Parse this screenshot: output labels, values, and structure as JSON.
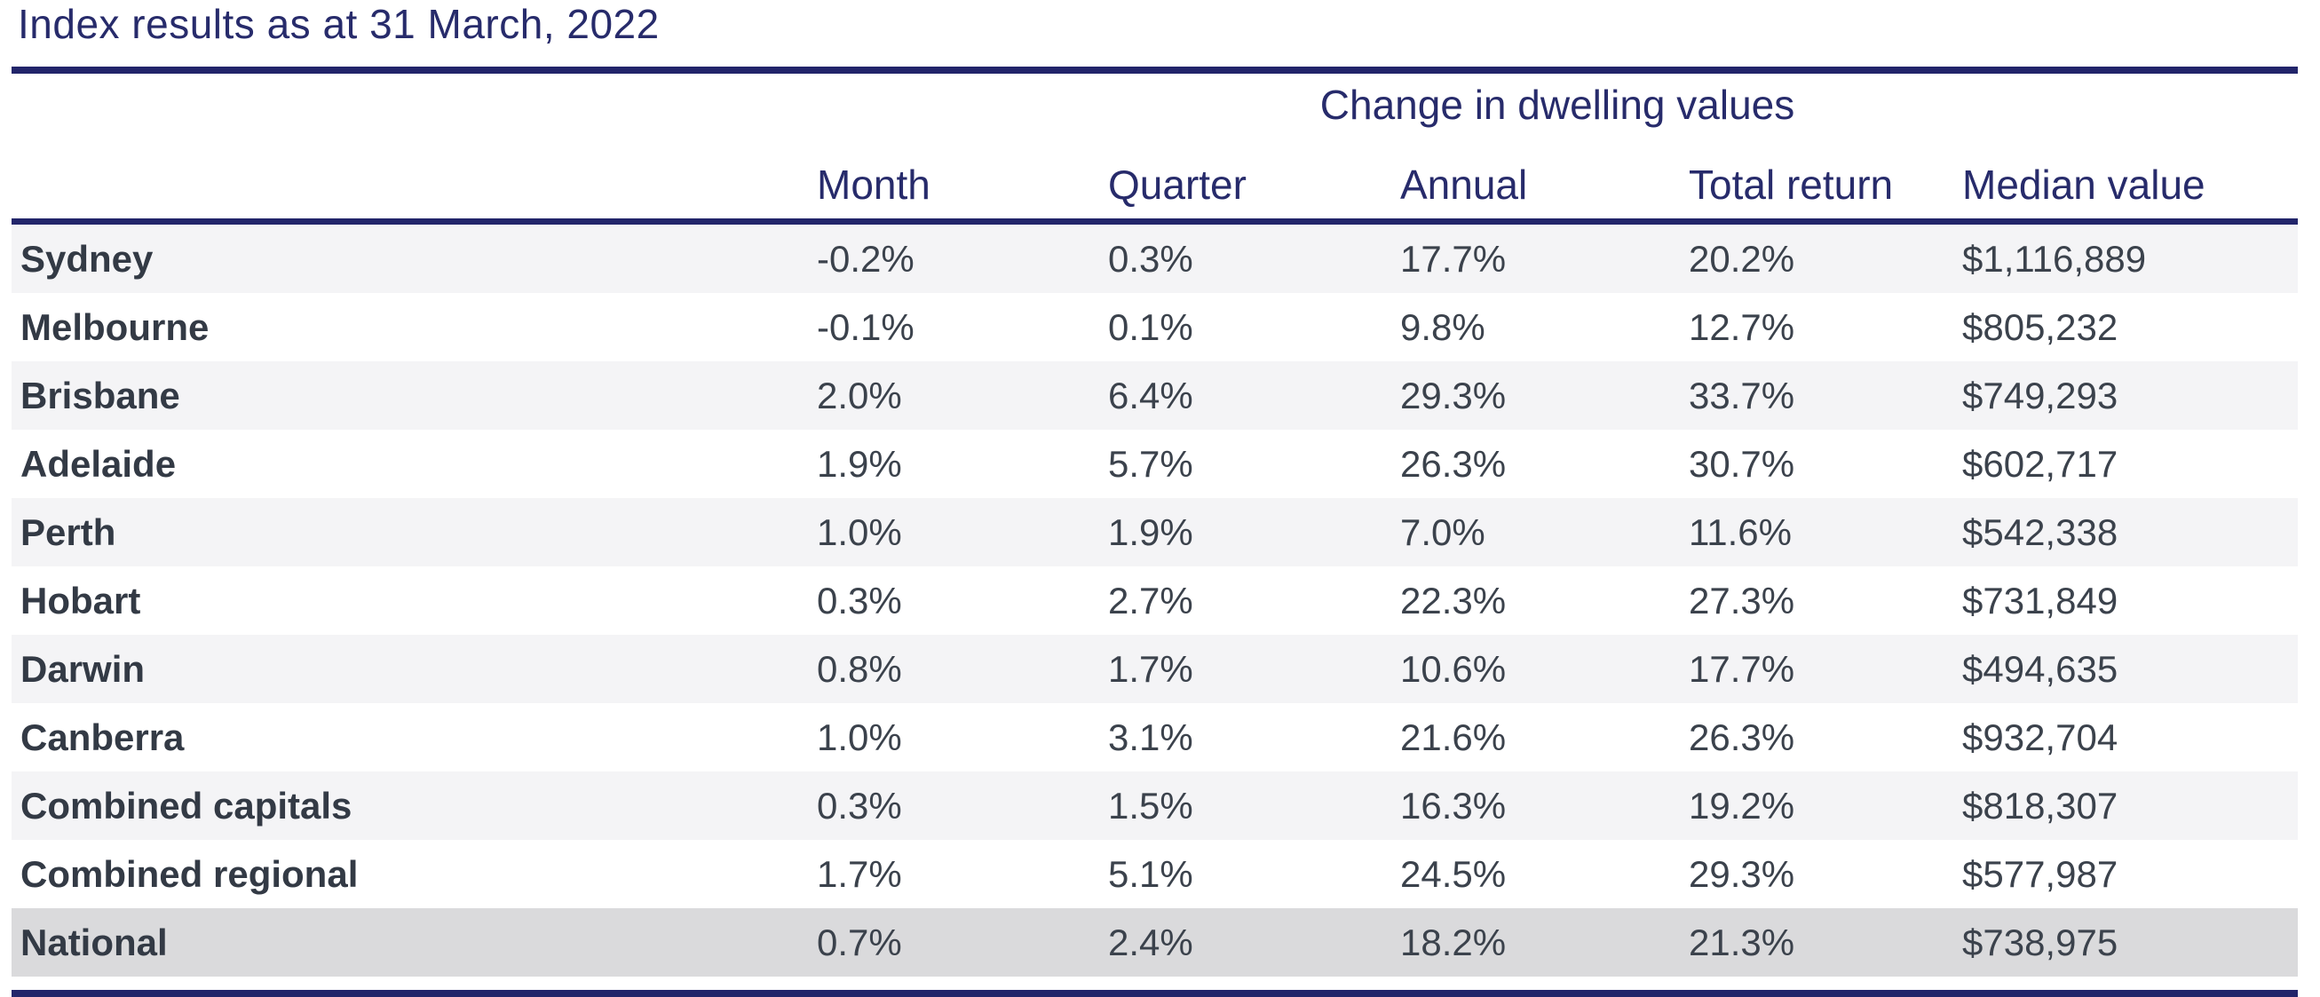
{
  "title": "Index results as at 31 March, 2022",
  "colors": {
    "navy_accent": "#22256a",
    "header_text": "#272b6b",
    "body_text": "#3b424c",
    "row_alt_background": "#f4f4f6",
    "national_row_background": "#dadadc"
  },
  "table": {
    "group_header": "Change in dwelling values",
    "columns": [
      "",
      "Month",
      "Quarter",
      "Annual",
      "Total return",
      "Median value"
    ],
    "rows": [
      {
        "name": "Sydney",
        "month": "-0.2%",
        "quarter": "0.3%",
        "annual": "17.7%",
        "total_return": "20.2%",
        "median_value": "$1,116,889"
      },
      {
        "name": "Melbourne",
        "month": "-0.1%",
        "quarter": "0.1%",
        "annual": "9.8%",
        "total_return": "12.7%",
        "median_value": "$805,232"
      },
      {
        "name": "Brisbane",
        "month": "2.0%",
        "quarter": "6.4%",
        "annual": "29.3%",
        "total_return": "33.7%",
        "median_value": "$749,293"
      },
      {
        "name": "Adelaide",
        "month": "1.9%",
        "quarter": "5.7%",
        "annual": "26.3%",
        "total_return": "30.7%",
        "median_value": "$602,717"
      },
      {
        "name": "Perth",
        "month": "1.0%",
        "quarter": "1.9%",
        "annual": "7.0%",
        "total_return": "11.6%",
        "median_value": "$542,338"
      },
      {
        "name": "Hobart",
        "month": "0.3%",
        "quarter": "2.7%",
        "annual": "22.3%",
        "total_return": "27.3%",
        "median_value": "$731,849"
      },
      {
        "name": "Darwin",
        "month": "0.8%",
        "quarter": "1.7%",
        "annual": "10.6%",
        "total_return": "17.7%",
        "median_value": "$494,635"
      },
      {
        "name": "Canberra",
        "month": "1.0%",
        "quarter": "3.1%",
        "annual": "21.6%",
        "total_return": "26.3%",
        "median_value": "$932,704"
      },
      {
        "name": "Combined capitals",
        "month": "0.3%",
        "quarter": "1.5%",
        "annual": "16.3%",
        "total_return": "19.2%",
        "median_value": "$818,307"
      },
      {
        "name": "Combined regional",
        "month": "1.7%",
        "quarter": "5.1%",
        "annual": "24.5%",
        "total_return": "29.3%",
        "median_value": "$577,987"
      },
      {
        "name": "National",
        "month": "0.7%",
        "quarter": "2.4%",
        "annual": "18.2%",
        "total_return": "21.3%",
        "median_value": "$738,975"
      }
    ]
  }
}
